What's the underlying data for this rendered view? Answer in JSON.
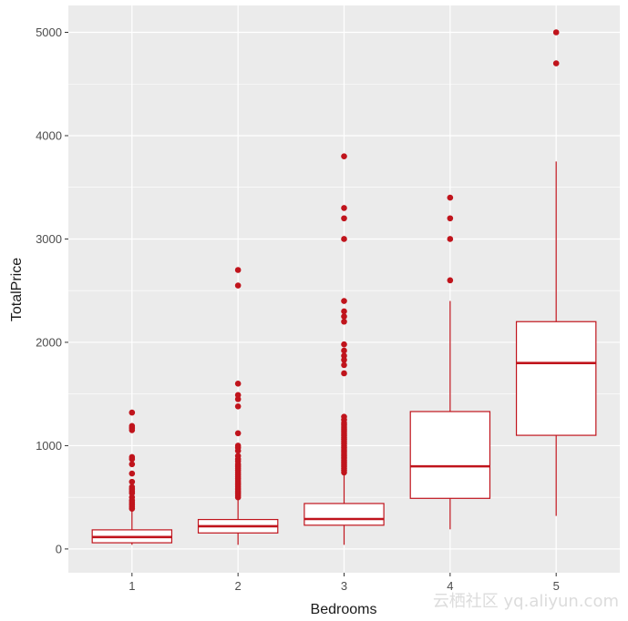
{
  "chart_data": {
    "type": "boxplot",
    "title": "",
    "xlabel": "Bedrooms",
    "ylabel": "TotalPrice",
    "categories": [
      "1",
      "2",
      "3",
      "4",
      "5"
    ],
    "ylim": [
      -230,
      5260
    ],
    "yticks": [
      0,
      1000,
      2000,
      3000,
      4000,
      5000
    ],
    "yticklabels": [
      "0",
      "1000",
      "2000",
      "3000",
      "4000",
      "5000"
    ],
    "grid": true,
    "colors": {
      "panel": "#ebebeb",
      "grid": "#ffffff",
      "box": "#c0141c",
      "point": "#c0141c",
      "fill": "#ffffff"
    },
    "boxes": [
      {
        "category": "1",
        "whisker_low": 40,
        "q1": 60,
        "median": 115,
        "q3": 185,
        "whisker_high": 370,
        "outliers": [
          390,
          410,
          430,
          450,
          470,
          500,
          540,
          560,
          580,
          600,
          650,
          730,
          820,
          870,
          890,
          1150,
          1170,
          1190,
          1320
        ]
      },
      {
        "category": "2",
        "whisker_low": 40,
        "q1": 155,
        "median": 220,
        "q3": 285,
        "whisker_high": 480,
        "outliers": [
          500,
          520,
          540,
          560,
          580,
          600,
          620,
          640,
          660,
          680,
          700,
          720,
          740,
          760,
          780,
          800,
          820,
          850,
          870,
          900,
          950,
          980,
          1000,
          1120,
          1380,
          1450,
          1490,
          1600,
          2550,
          2700
        ]
      },
      {
        "category": "3",
        "whisker_low": 40,
        "q1": 230,
        "median": 290,
        "q3": 440,
        "whisker_high": 720,
        "outliers": [
          740,
          760,
          780,
          800,
          820,
          840,
          860,
          880,
          900,
          920,
          940,
          960,
          980,
          1000,
          1020,
          1040,
          1060,
          1080,
          1100,
          1120,
          1140,
          1160,
          1180,
          1200,
          1220,
          1250,
          1280,
          1700,
          1780,
          1830,
          1870,
          1920,
          1980,
          2200,
          2250,
          2300,
          2400,
          3000,
          3200,
          3300,
          3800
        ]
      },
      {
        "category": "4",
        "whisker_low": 190,
        "q1": 490,
        "median": 800,
        "q3": 1330,
        "whisker_high": 2400,
        "outliers": [
          2600,
          3000,
          3200,
          3400
        ]
      },
      {
        "category": "5",
        "whisker_low": 320,
        "q1": 1100,
        "median": 1800,
        "q3": 2200,
        "whisker_high": 3750,
        "outliers": [
          4700,
          5000
        ]
      }
    ]
  },
  "watermark": "云栖社区 yq.aliyun.com"
}
